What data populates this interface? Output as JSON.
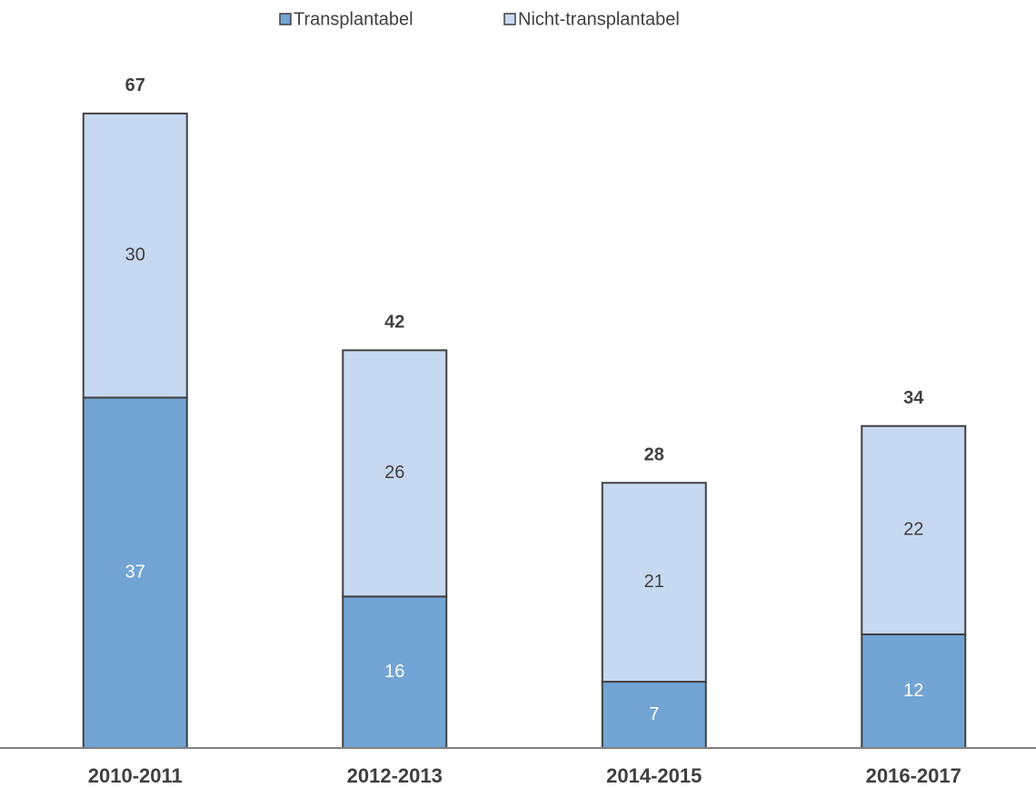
{
  "chart_data": {
    "type": "stacked_bar",
    "categories": [
      "2010-2011",
      "2012-2013",
      "2014-2015",
      "2016-2017"
    ],
    "series": [
      {
        "name": "Transplantabel",
        "color": "#72a4d4",
        "values": [
          37,
          16,
          7,
          12
        ]
      },
      {
        "name": "Nicht-transplantabel",
        "color": "#c6d9f0",
        "values": [
          30,
          26,
          21,
          22
        ]
      }
    ],
    "totals": [
      67,
      42,
      28,
      34
    ],
    "legend": "top"
  }
}
